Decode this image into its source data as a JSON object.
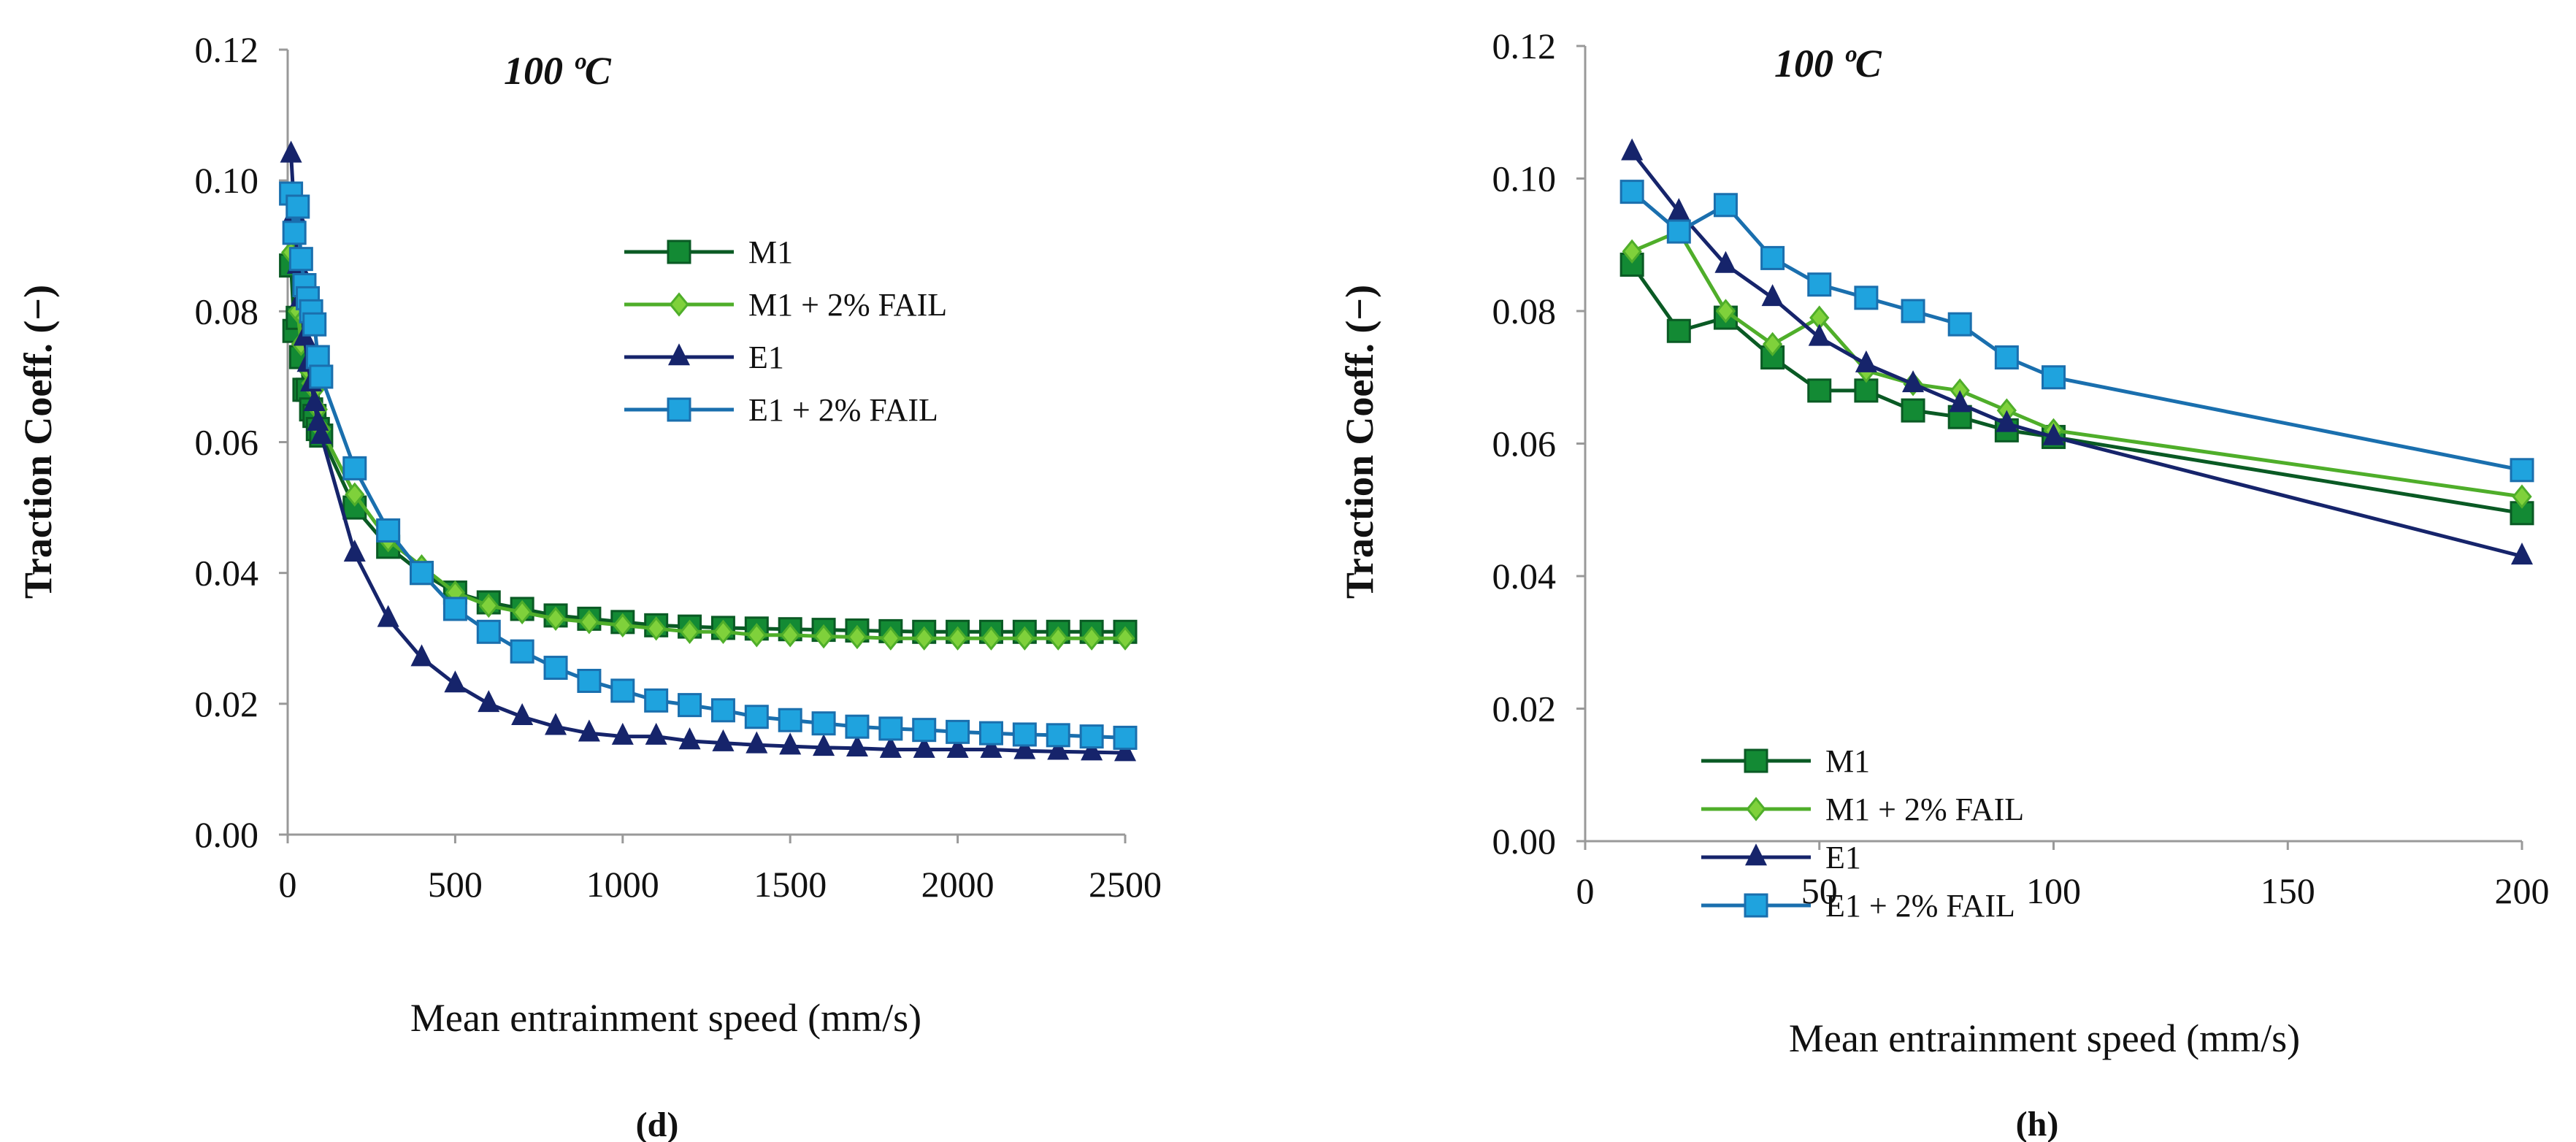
{
  "chart_data": [
    {
      "type": "line",
      "panel_label": "(d)",
      "title": "100 ºC",
      "xlabel": "Mean  entrainment speed (mm/s)",
      "ylabel": "Traction Coeff. (−)",
      "xlim": [
        0,
        2500
      ],
      "ylim": [
        0,
        0.12
      ],
      "xticks": [
        "0",
        "500",
        "1000",
        "1500",
        "2000",
        "2500"
      ],
      "yticks": [
        "0.00",
        "0.02",
        "0.04",
        "0.06",
        "0.08",
        "0.10",
        "0.12"
      ],
      "grid": false,
      "legend": "center-right",
      "x": [
        10,
        20,
        30,
        40,
        50,
        60,
        70,
        80,
        90,
        100,
        200,
        300,
        400,
        500,
        600,
        700,
        800,
        900,
        1000,
        1100,
        1200,
        1300,
        1400,
        1500,
        1600,
        1700,
        1800,
        1900,
        2000,
        2100,
        2200,
        2300,
        2400,
        2500
      ],
      "series": [
        {
          "name": "M1",
          "marker": "square",
          "color": "#138a34",
          "line": "#0a5a24",
          "values": [
            0.087,
            0.077,
            0.079,
            0.073,
            0.068,
            0.068,
            0.065,
            0.064,
            0.062,
            0.061,
            0.05,
            0.044,
            0.04,
            0.037,
            0.0355,
            0.0345,
            0.0335,
            0.033,
            0.0325,
            0.032,
            0.0318,
            0.0316,
            0.0315,
            0.0314,
            0.0313,
            0.0312,
            0.0311,
            0.031,
            0.031,
            0.031,
            0.031,
            0.031,
            0.031,
            0.031
          ]
        },
        {
          "name": "M1 + 2% FAIL",
          "marker": "diamond",
          "color": "#7fd13b",
          "line": "#4fae2a",
          "values": [
            0.089,
            0.092,
            0.08,
            0.075,
            0.079,
            0.071,
            0.069,
            0.068,
            0.065,
            0.062,
            0.052,
            0.045,
            0.041,
            0.037,
            0.035,
            0.034,
            0.033,
            0.0325,
            0.032,
            0.0315,
            0.031,
            0.031,
            0.0305,
            0.0305,
            0.0303,
            0.0302,
            0.03,
            0.03,
            0.03,
            0.03,
            0.03,
            0.03,
            0.03,
            0.03
          ]
        },
        {
          "name": "E1",
          "marker": "triangle",
          "color": "#16246b",
          "line": "#16246b",
          "values": [
            0.104,
            0.095,
            0.087,
            0.082,
            0.076,
            0.072,
            0.069,
            0.066,
            0.063,
            0.061,
            0.043,
            0.033,
            0.027,
            0.023,
            0.02,
            0.018,
            0.0165,
            0.0155,
            0.015,
            0.015,
            0.0143,
            0.014,
            0.0137,
            0.0135,
            0.0133,
            0.0132,
            0.013,
            0.013,
            0.013,
            0.013,
            0.0128,
            0.0127,
            0.0126,
            0.0125
          ]
        },
        {
          "name": "E1 + 2% FAIL",
          "marker": "square",
          "color": "#1fa3de",
          "line": "#1a6fae",
          "values": [
            0.098,
            0.092,
            0.096,
            0.088,
            0.084,
            0.082,
            0.08,
            0.078,
            0.073,
            0.07,
            0.056,
            0.0465,
            0.04,
            0.0345,
            0.031,
            0.028,
            0.0255,
            0.0235,
            0.022,
            0.0205,
            0.0198,
            0.019,
            0.018,
            0.0175,
            0.017,
            0.0165,
            0.0162,
            0.016,
            0.0157,
            0.0155,
            0.0153,
            0.0152,
            0.015,
            0.0148
          ]
        }
      ]
    },
    {
      "type": "line",
      "panel_label": "(h)",
      "title": "100 ºC",
      "xlabel": "Mean  entrainment speed (mm/s)",
      "ylabel": "Traction Coeff. (−)",
      "xlim": [
        0,
        200
      ],
      "ylim": [
        0,
        0.12
      ],
      "xticks": [
        "0",
        "50",
        "100",
        "150",
        "200"
      ],
      "yticks": [
        "0.00",
        "0.02",
        "0.04",
        "0.06",
        "0.08",
        "0.10",
        "0.12"
      ],
      "grid": false,
      "legend": "bottom-left",
      "x": [
        10,
        20,
        30,
        40,
        50,
        60,
        70,
        80,
        90,
        100,
        200
      ],
      "series": [
        {
          "name": "M1",
          "marker": "square",
          "color": "#138a34",
          "line": "#0a5a24",
          "values": [
            0.087,
            0.077,
            0.079,
            0.073,
            0.068,
            0.068,
            0.065,
            0.064,
            0.062,
            0.061,
            0.0495
          ]
        },
        {
          "name": "M1 + 2% FAIL",
          "marker": "diamond",
          "color": "#7fd13b",
          "line": "#4fae2a",
          "values": [
            0.089,
            0.092,
            0.08,
            0.075,
            0.079,
            0.071,
            0.069,
            0.068,
            0.065,
            0.062,
            0.052
          ]
        },
        {
          "name": "E1",
          "marker": "triangle",
          "color": "#16246b",
          "line": "#16246b",
          "values": [
            0.104,
            0.095,
            0.087,
            0.082,
            0.076,
            0.072,
            0.069,
            0.066,
            0.063,
            0.061,
            0.043
          ]
        },
        {
          "name": "E1 + 2% FAIL",
          "marker": "square",
          "color": "#1fa3de",
          "line": "#1a6fae",
          "values": [
            0.098,
            0.092,
            0.096,
            0.088,
            0.084,
            0.082,
            0.08,
            0.078,
            0.073,
            0.07,
            0.056
          ]
        }
      ]
    }
  ]
}
